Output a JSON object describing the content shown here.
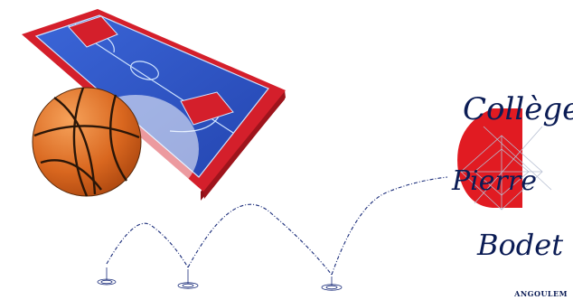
{
  "logo": {
    "line1": "Collège",
    "line2": "Pierre",
    "line3": "Bodet",
    "footer": "ANGOULEM",
    "colors": {
      "navy": "#0b1c55",
      "red": "#e11b22"
    }
  },
  "illustration": {
    "subjects": [
      "basketball-court",
      "basketball",
      "bounce-trajectory"
    ],
    "colors": {
      "court_blue": "#2f57c9",
      "court_red": "#d41f2b",
      "ball_orange": "#e0782a"
    }
  }
}
